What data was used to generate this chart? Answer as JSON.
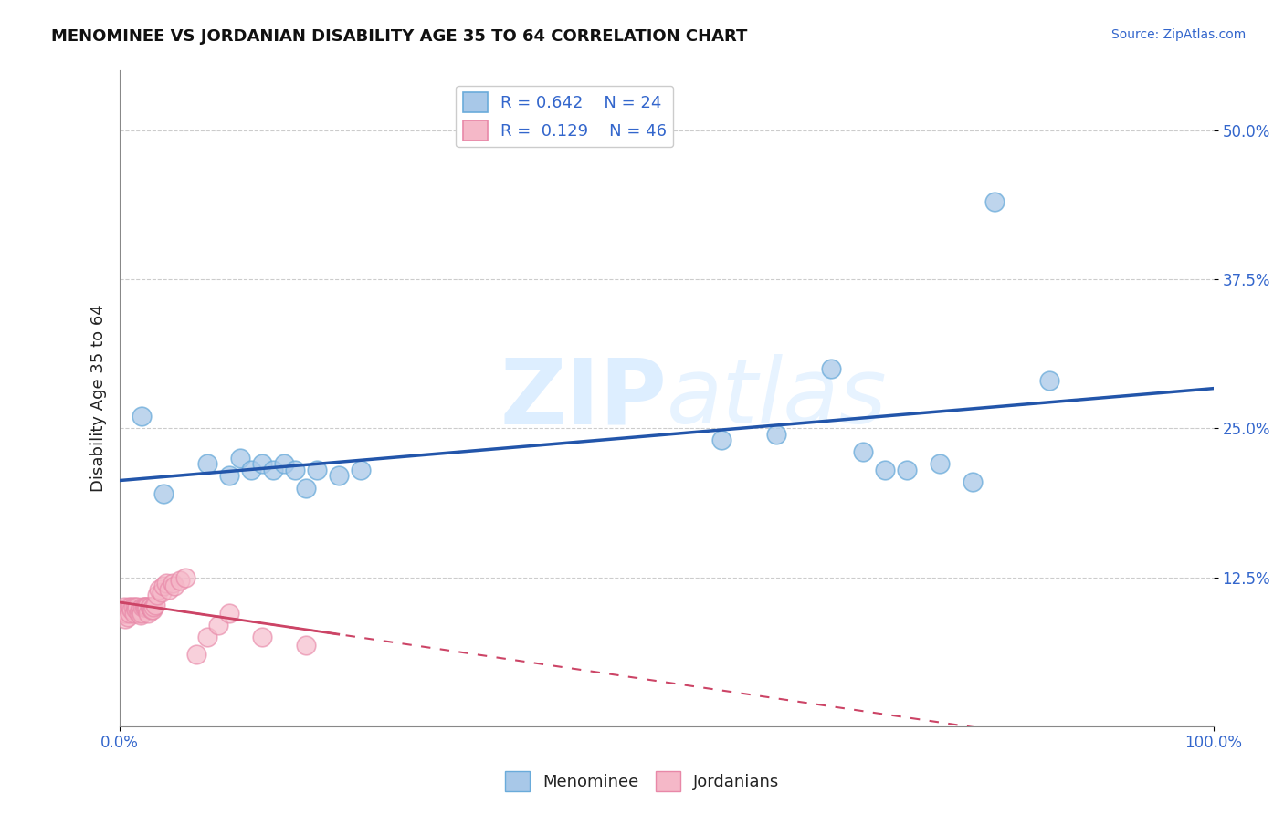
{
  "title": "MENOMINEE VS JORDANIAN DISABILITY AGE 35 TO 64 CORRELATION CHART",
  "source_text": "Source: ZipAtlas.com",
  "ylabel": "Disability Age 35 to 64",
  "xlim": [
    0.0,
    1.0
  ],
  "ylim": [
    0.0,
    0.55
  ],
  "yticks": [
    0.125,
    0.25,
    0.375,
    0.5
  ],
  "ytick_labels": [
    "12.5%",
    "25.0%",
    "37.5%",
    "50.0%"
  ],
  "xticks": [
    0.0,
    1.0
  ],
  "xtick_labels": [
    "0.0%",
    "100.0%"
  ],
  "menominee_R": 0.642,
  "menominee_N": 24,
  "jordanian_R": 0.129,
  "jordanian_N": 46,
  "menominee_color": "#a8c8e8",
  "menominee_edge_color": "#6aabda",
  "menominee_line_color": "#2255aa",
  "jordanian_color": "#f5b8c8",
  "jordanian_edge_color": "#e888a8",
  "jordanian_line_color": "#cc4466",
  "background_color": "#ffffff",
  "watermark_color": "#ddeeff",
  "grid_color": "#cccccc",
  "menominee_x": [
    0.02,
    0.04,
    0.08,
    0.1,
    0.11,
    0.12,
    0.13,
    0.14,
    0.15,
    0.16,
    0.17,
    0.18,
    0.2,
    0.22,
    0.55,
    0.6,
    0.65,
    0.68,
    0.7,
    0.72,
    0.75,
    0.78,
    0.8,
    0.85
  ],
  "menominee_y": [
    0.26,
    0.195,
    0.22,
    0.21,
    0.225,
    0.215,
    0.22,
    0.215,
    0.22,
    0.215,
    0.2,
    0.215,
    0.21,
    0.215,
    0.24,
    0.245,
    0.3,
    0.23,
    0.215,
    0.215,
    0.22,
    0.205,
    0.44,
    0.29
  ],
  "jordanian_x": [
    0.003,
    0.004,
    0.005,
    0.006,
    0.007,
    0.008,
    0.009,
    0.01,
    0.011,
    0.012,
    0.013,
    0.014,
    0.015,
    0.016,
    0.017,
    0.018,
    0.019,
    0.02,
    0.021,
    0.022,
    0.023,
    0.024,
    0.025,
    0.026,
    0.027,
    0.028,
    0.029,
    0.03,
    0.031,
    0.032,
    0.034,
    0.036,
    0.038,
    0.04,
    0.042,
    0.045,
    0.048,
    0.05,
    0.055,
    0.06,
    0.07,
    0.08,
    0.09,
    0.1,
    0.13,
    0.17
  ],
  "jordanian_y": [
    0.095,
    0.1,
    0.09,
    0.095,
    0.092,
    0.1,
    0.095,
    0.1,
    0.098,
    0.1,
    0.095,
    0.1,
    0.098,
    0.1,
    0.095,
    0.098,
    0.093,
    0.095,
    0.1,
    0.1,
    0.1,
    0.1,
    0.1,
    0.095,
    0.1,
    0.1,
    0.098,
    0.098,
    0.1,
    0.102,
    0.11,
    0.115,
    0.112,
    0.118,
    0.12,
    0.115,
    0.12,
    0.118,
    0.122,
    0.125,
    0.06,
    0.075,
    0.085,
    0.095,
    0.075,
    0.068
  ]
}
